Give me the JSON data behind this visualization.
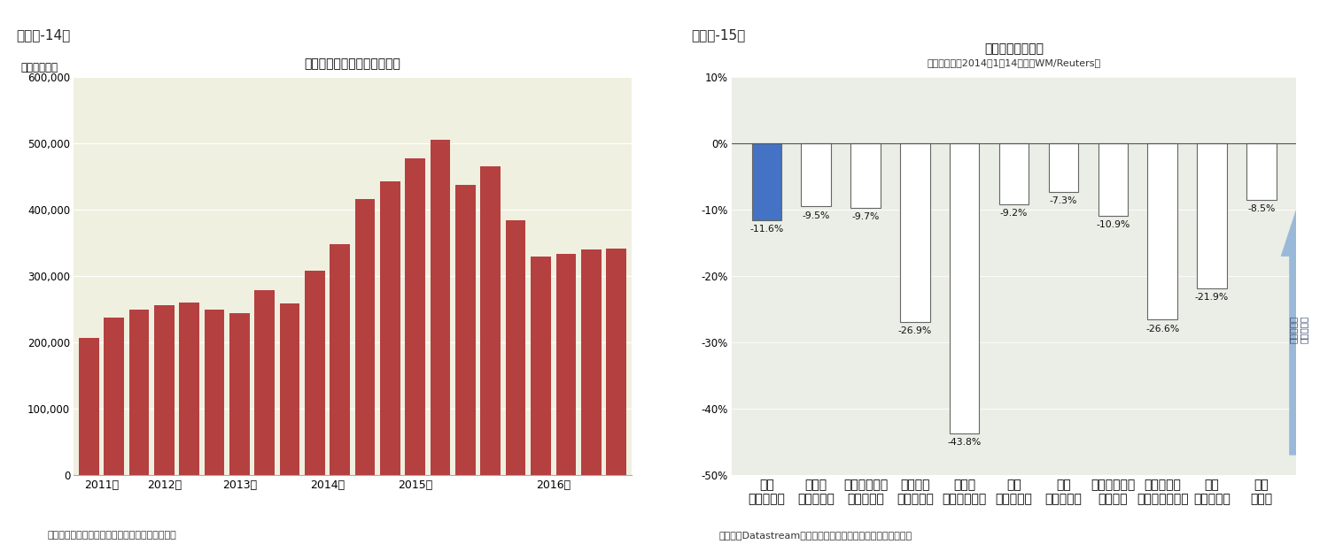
{
  "fig14_title": "海外からの現預金残高の推移",
  "fig14_ylabel": "（百万ドル）",
  "fig14_source": "（資料）中国国家外貨管理局のデータを元に作成",
  "fig14_header": "（図表-14）",
  "fig14_bar_color": "#b54040",
  "fig14_bg_color": "#f0f0e0",
  "fig14_ylim": [
    0,
    600000
  ],
  "fig14_yticks": [
    0,
    100000,
    200000,
    300000,
    400000,
    500000,
    600000
  ],
  "fig14_ytick_labels": [
    "0",
    "100,000",
    "200,000",
    "300,000",
    "400,000",
    "500,000",
    "600,000"
  ],
  "fig14_values": [
    207000,
    237000,
    249000,
    256000,
    260000,
    249000,
    244000,
    279000,
    259000,
    308000,
    348000,
    416000,
    443000,
    477000,
    505000,
    438000,
    465000,
    384000,
    329000,
    333000,
    340000,
    341000
  ],
  "fig14_year_centers": [
    0.5,
    3.0,
    6.0,
    9.5,
    13.0,
    18.5
  ],
  "fig14_year_labels": [
    "2011年",
    "2012年",
    "2013年",
    "2014年",
    "2015年",
    "2016年"
  ],
  "fig15_title": "主要通貨の変化率",
  "fig15_subtitle": "（対米ドル、2014年1月14日比、WM/Reuters）",
  "fig15_header": "（図表-15）",
  "fig15_source": "（資料）Datastreamのデータを元にニッセイ基礎研究所で作成",
  "fig15_bg_color": "#eaeee6",
  "fig15_ylim": [
    -50,
    10
  ],
  "fig15_yticks": [
    -50,
    -40,
    -30,
    -20,
    -10,
    0,
    10
  ],
  "fig15_ytick_labels": [
    "-50%",
    "-40%",
    "-30%",
    "-20%",
    "-10%",
    "0%",
    "10%"
  ],
  "fig15_categories": [
    "中国\n（人民元）",
    "インド\n（ルピー）",
    "インドネシア\n（ルピア）",
    "ブラジル\n（レアル）",
    "ロシア\n（ルーブル）",
    "韓国\n（ウォン）",
    "タイ\n（バーツ）",
    "シンガポール\n（ドル）",
    "マレーシア\n（リンギット）",
    "欧州\n（ユーロ）",
    "日本\n（円）"
  ],
  "fig15_values": [
    -11.6,
    -9.5,
    -9.7,
    -26.9,
    -43.8,
    -9.2,
    -7.3,
    -10.9,
    -26.6,
    -21.9,
    -8.5
  ],
  "fig15_bar_colors": [
    "#4472c4",
    "#ffffff",
    "#ffffff",
    "#ffffff",
    "#ffffff",
    "#ffffff",
    "#ffffff",
    "#ffffff",
    "#ffffff",
    "#ffffff",
    "#ffffff"
  ],
  "fig15_bar_edge_color": "#666666",
  "fig15_arrow_color": "#9ab8d8",
  "fig15_arrow_text": "自国通貨高\n（ドル安）"
}
